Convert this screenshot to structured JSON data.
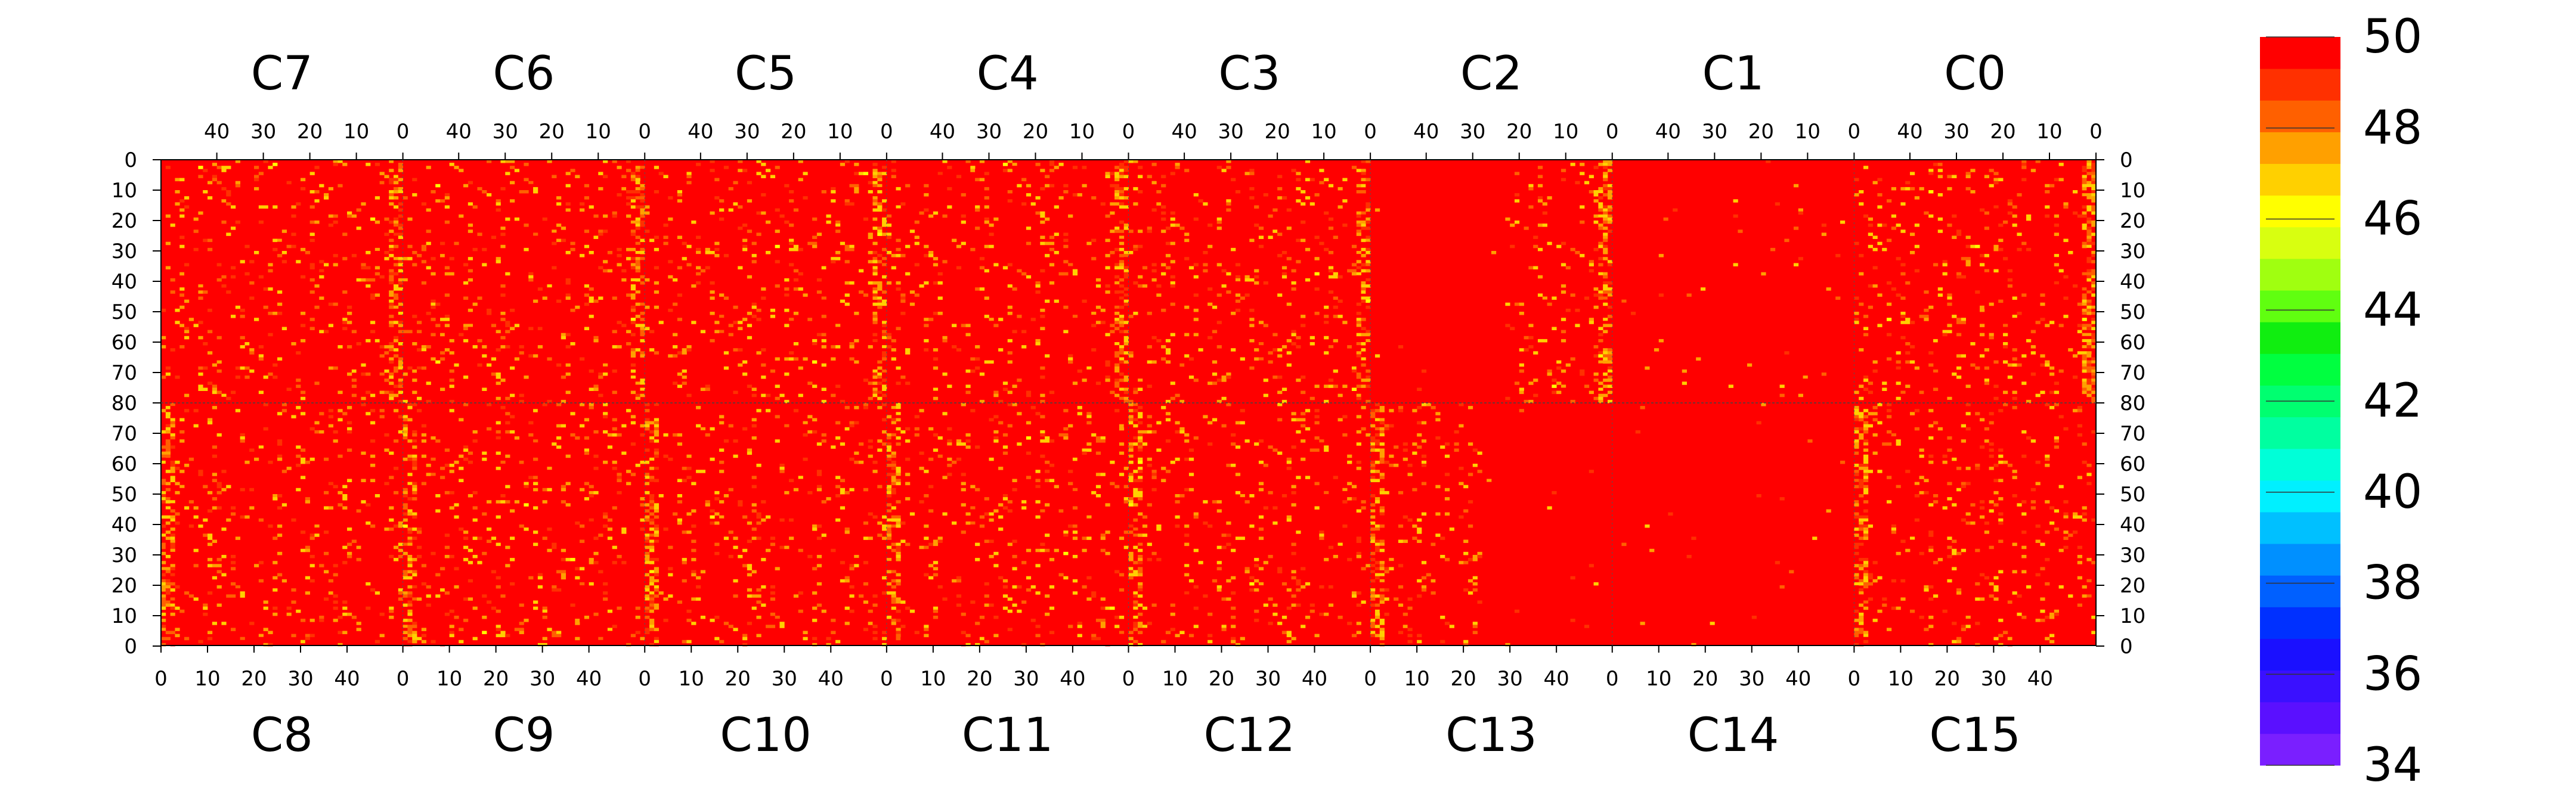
{
  "chart_data": {
    "type": "heatmap",
    "title": "",
    "colorbar": {
      "range": [
        34,
        50
      ],
      "tick_labels": [
        "50",
        "48",
        "46",
        "44",
        "42",
        "40",
        "38",
        "36",
        "34"
      ],
      "tick_values": [
        50,
        48,
        46,
        44,
        42,
        40,
        38,
        36,
        34
      ],
      "colors": [
        "#7a1fff",
        "#5a10ff",
        "#3a10ff",
        "#1a10ff",
        "#0030ff",
        "#0060ff",
        "#0090ff",
        "#00c0ff",
        "#00f0ff",
        "#00ffd8",
        "#00ffa0",
        "#00ff70",
        "#00ff40",
        "#10ee10",
        "#60ff10",
        "#a0ff10",
        "#d8ff10",
        "#ffff00",
        "#ffd000",
        "#ffa000",
        "#ff6000",
        "#ff3000",
        "#ff0000"
      ]
    },
    "top_row": {
      "chips": [
        "C7",
        "C6",
        "C5",
        "C4",
        "C3",
        "C2",
        "C1",
        "C0"
      ],
      "tick_labels": [
        "40",
        "30",
        "20",
        "10",
        "0"
      ],
      "tick_values": [
        40,
        30,
        20,
        10,
        0
      ],
      "y_tick_labels": [
        "0",
        "10",
        "20",
        "30",
        "40",
        "50",
        "60",
        "70",
        "80"
      ],
      "y_tick_values": [
        0,
        10,
        20,
        30,
        40,
        50,
        60,
        70,
        80
      ]
    },
    "bottom_row": {
      "chips": [
        "C8",
        "C9",
        "C10",
        "C11",
        "C12",
        "C13",
        "C14",
        "C15"
      ],
      "tick_labels": [
        "0",
        "10",
        "20",
        "30",
        "40"
      ],
      "tick_values": [
        0,
        10,
        20,
        30,
        40
      ],
      "y_tick_labels": [
        "80",
        "70",
        "60",
        "50",
        "40",
        "30",
        "20",
        "10",
        "0"
      ],
      "y_tick_values": [
        80,
        70,
        60,
        50,
        40,
        30,
        20,
        10,
        0
      ]
    },
    "columns_per_chip": 52,
    "rows_per_half": 80,
    "dominant_value": 50,
    "value_range_observed": [
      46,
      50
    ],
    "features": [
      {
        "description": "brighter (orange/yellow, ~47-49) vertical band at column 0 of each chip boundary"
      },
      {
        "description": "noisy orange speckles (~48-49) across chips C2-C15 left portions"
      },
      {
        "description": "uniform red (50) in chips C1/C14 and right part of C2/C13"
      }
    ]
  }
}
